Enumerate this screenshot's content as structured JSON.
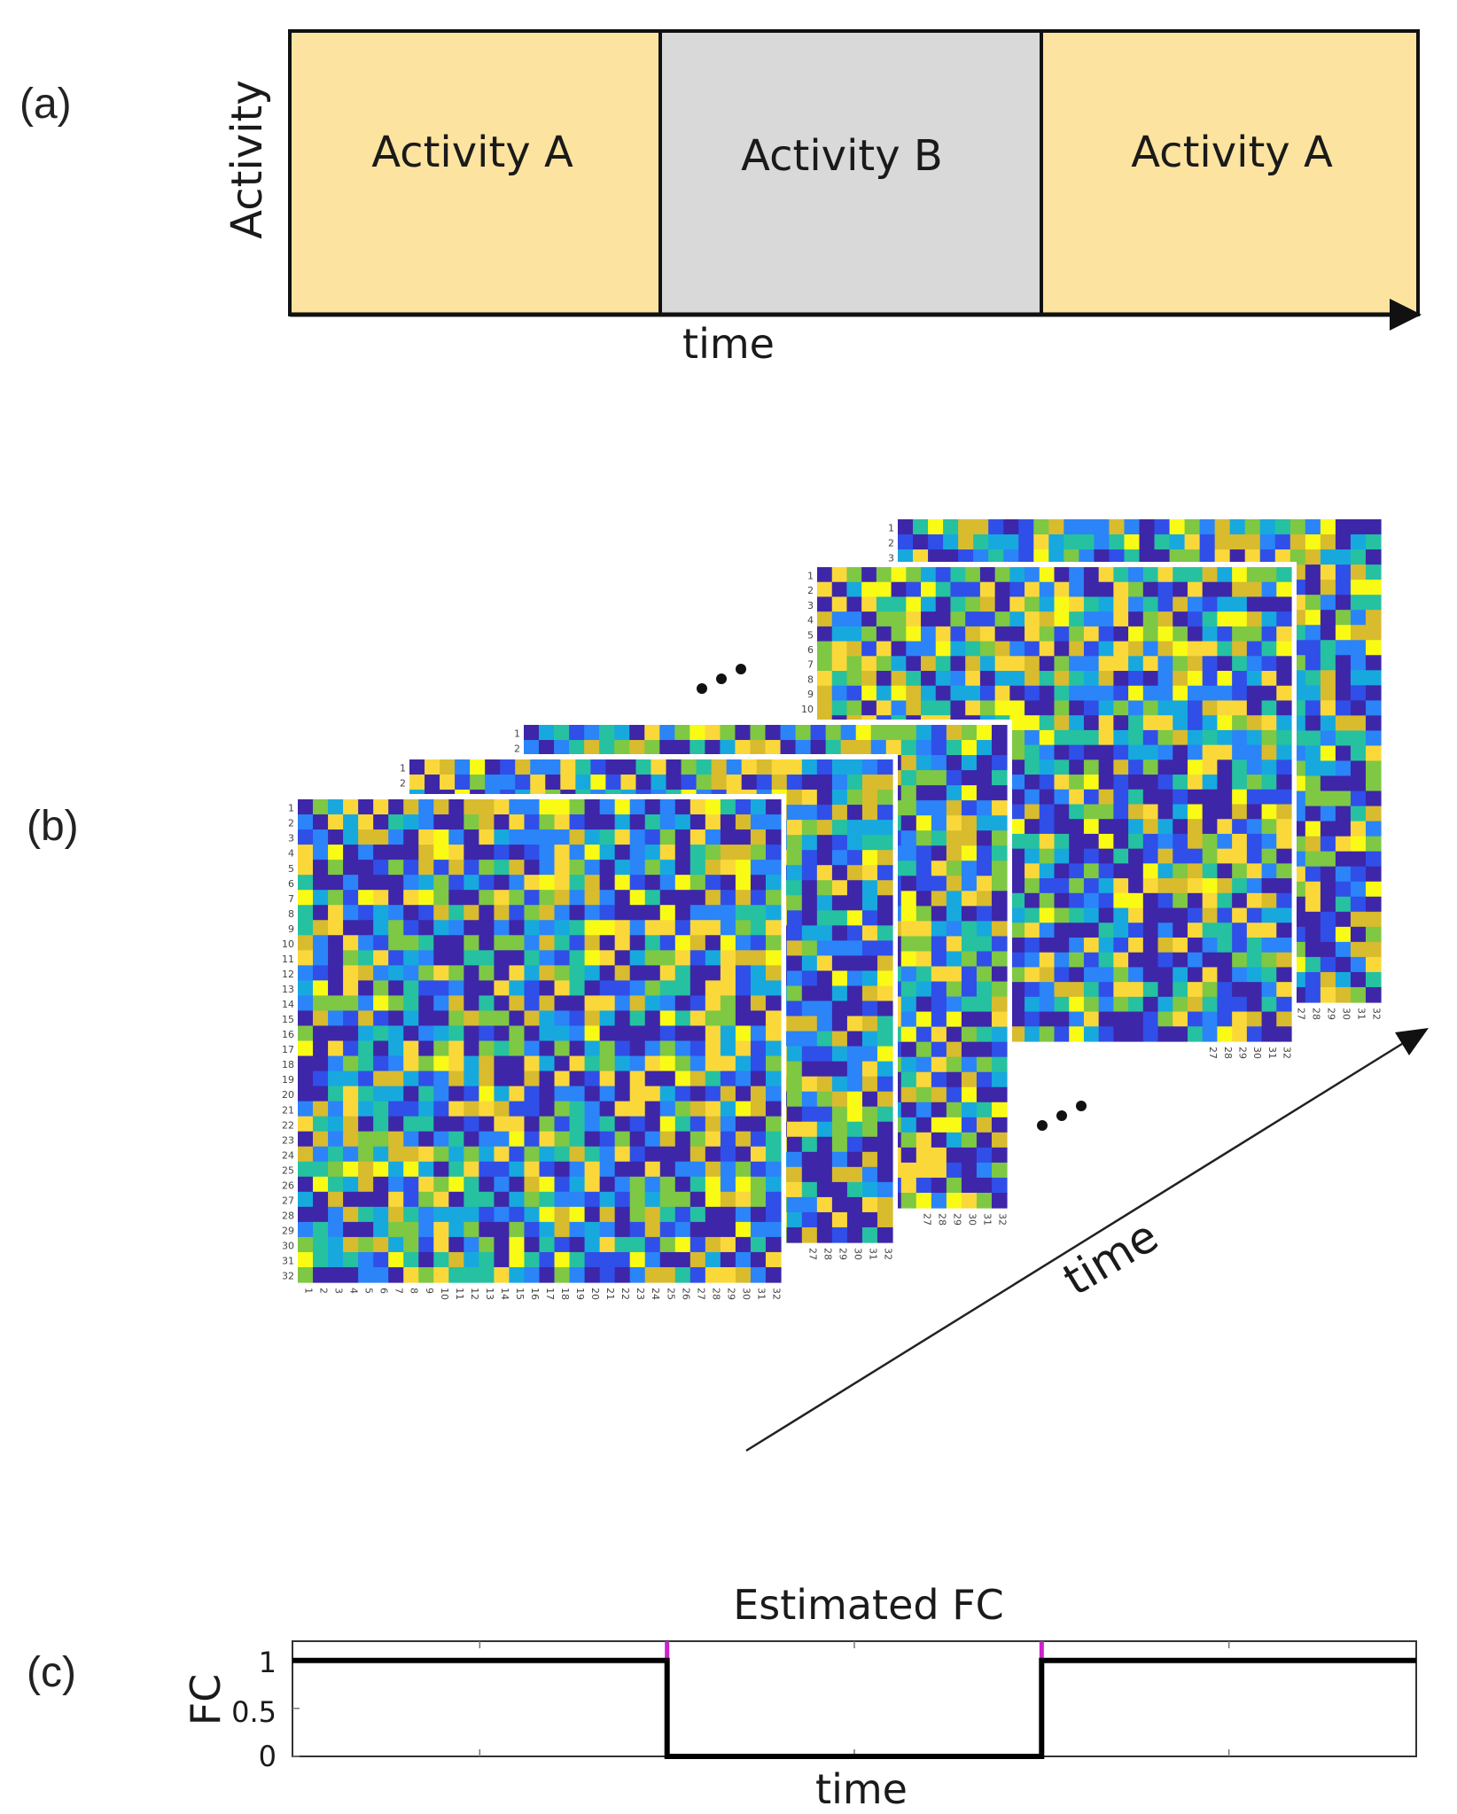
{
  "panel_a": {
    "label": "(a)",
    "y_label": "Activity",
    "x_label": "time",
    "segments": [
      {
        "name": "Activity A",
        "color": "#fce4a0"
      },
      {
        "name": "Activity B",
        "color": "#d9d9d9"
      },
      {
        "name": "Activity A",
        "color": "#fce4a0"
      }
    ]
  },
  "panel_b": {
    "label": "(b)",
    "axis_label": "time",
    "ellipsis": "...",
    "matrix_size": 32,
    "colormap": [
      "#3e26a8",
      "#2f4fe8",
      "#2b84f8",
      "#17a9de",
      "#26c1a0",
      "#7ec844",
      "#d9bb2e",
      "#fbd83a",
      "#f9fb15"
    ]
  },
  "panel_c": {
    "label": "(c)",
    "title": "Estimated FC",
    "x_label": "time",
    "y_label": "FC",
    "y_ticks": [
      "1",
      "0.5",
      "0"
    ],
    "fc_color": "#000000",
    "change_color": "#cc22cc"
  },
  "chart_data": {
    "type": "line",
    "title": "Estimated FC",
    "xlabel": "time",
    "ylabel": "FC",
    "ylim": [
      0,
      1.2
    ],
    "x": [
      0,
      1,
      1,
      2,
      2,
      3
    ],
    "values": [
      1,
      1,
      0,
      0,
      1,
      1
    ],
    "change_points": [
      1,
      2
    ]
  }
}
